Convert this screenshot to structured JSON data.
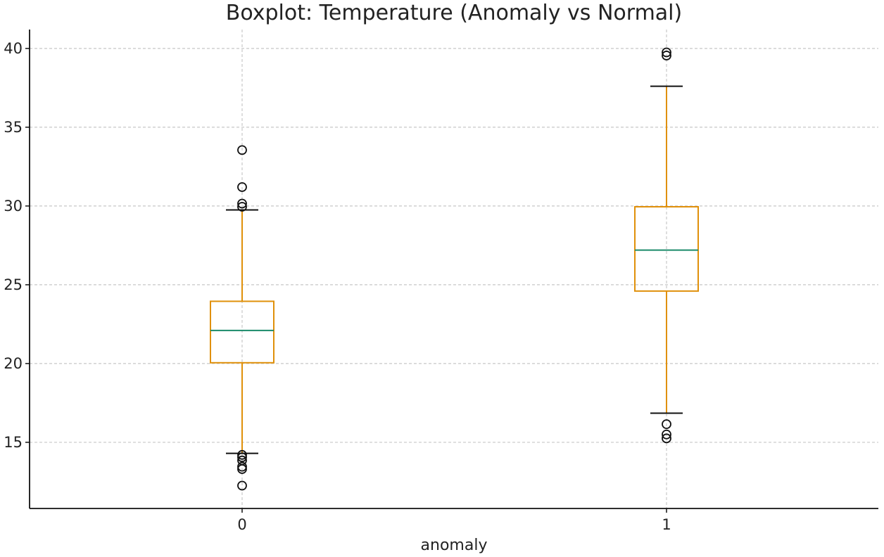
{
  "colors": {
    "box": "#e0900a",
    "median": "#1a8a6a",
    "whisker": "#e0900a",
    "cap": "#111111",
    "flier": "#111111",
    "grid": "#c7c7c7",
    "axis": "#111111"
  },
  "chart_data": {
    "type": "boxplot",
    "title": "Boxplot: Temperature (Anomaly vs Normal)",
    "xlabel": "anomaly",
    "ylabel": "",
    "categories": [
      "0",
      "1"
    ],
    "ylim": [
      10.8,
      41.2
    ],
    "yticks": [
      15,
      20,
      25,
      30,
      35,
      40
    ],
    "grid": true,
    "boxes": [
      {
        "category": "0",
        "whisker_low": 14.3,
        "q1": 20.05,
        "median": 22.1,
        "q3": 23.95,
        "whisker_high": 29.75,
        "outliers": [
          33.55,
          31.2,
          30.15,
          29.95,
          14.2,
          14.05,
          13.85,
          13.45,
          13.3,
          12.25
        ]
      },
      {
        "category": "1",
        "whisker_low": 16.85,
        "q1": 24.6,
        "median": 27.2,
        "q3": 29.95,
        "whisker_high": 37.6,
        "outliers": [
          39.75,
          39.55,
          16.15,
          15.5,
          15.25
        ]
      }
    ]
  }
}
